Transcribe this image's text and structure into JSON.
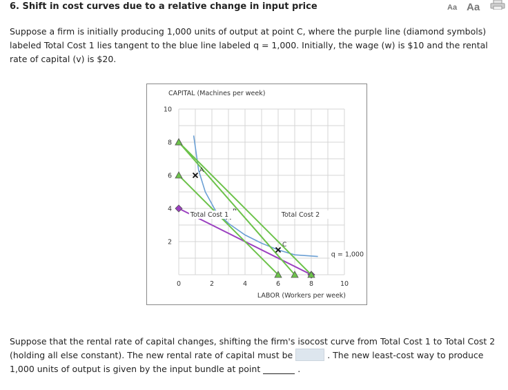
{
  "question": {
    "title": "6. Shift in cost curves due to a relative change in input price",
    "intro": "Suppose a firm is initially producing 1,000 units of output at point C, where the purple line (diamond symbols) labeled Total Cost 1 lies tangent to the blue line labeled q = 1,000. Initially, the wage (w) is $10 and the rental rate of capital (v) is $20.",
    "followup_part1": "Suppose that the rental rate of capital changes, shifting the firm's isocost curve from Total Cost 1 to Total Cost 2 (holding all else constant). The new rental rate of capital must be",
    "followup_part2": ". The new least-cost way to produce 1,000 units of output is given by the input bundle at point",
    "followup_end": "."
  },
  "toolbar": {
    "font_small_label": "Aa",
    "font_large_label": "Aa",
    "print_icon": "print-icon"
  },
  "chart_data": {
    "type": "line",
    "ylabel": "CAPITAL (Machines per week)",
    "xlabel": "LABOR (Workers per week)",
    "xlim": [
      0,
      10
    ],
    "ylim": [
      0,
      10
    ],
    "x_ticks": [
      "0",
      "2",
      "4",
      "6",
      "8",
      "10"
    ],
    "y_ticks": [
      "2",
      "4",
      "6",
      "8",
      "10"
    ],
    "grid": true,
    "series": [
      {
        "name": "q = 1,000",
        "color": "#6a9fd4",
        "kind": "isoquant",
        "points": [
          [
            0.9,
            8.4
          ],
          [
            1.2,
            6.3
          ],
          [
            1.6,
            5.0
          ],
          [
            2.2,
            3.9
          ],
          [
            3.0,
            3.1
          ],
          [
            4.0,
            2.4
          ],
          [
            5.0,
            1.9
          ],
          [
            6.0,
            1.5
          ],
          [
            7.0,
            1.2
          ],
          [
            8.4,
            1.1
          ]
        ]
      },
      {
        "name": "Total Cost 1",
        "color": "#9b3fc0",
        "kind": "isocost",
        "marker": "diamond",
        "points": [
          [
            0,
            4
          ],
          [
            8,
            0
          ]
        ]
      },
      {
        "name": "Total Cost 2",
        "color": "#6cc24a",
        "kind": "isocost",
        "marker": "triangle",
        "points": [
          [
            0,
            8
          ],
          [
            8,
            0
          ]
        ]
      },
      {
        "name": "",
        "color": "#6cc24a",
        "kind": "isocost",
        "marker": "triangle",
        "points": [
          [
            0,
            6
          ],
          [
            6,
            0
          ]
        ]
      },
      {
        "name": "",
        "color": "#6cc24a",
        "kind": "isocost",
        "marker": "triangle",
        "points": [
          [
            0,
            8
          ],
          [
            7,
            0
          ]
        ]
      }
    ],
    "annotations": [
      {
        "label": "A",
        "x": 1,
        "y": 6
      },
      {
        "label": "B",
        "x": 3,
        "y": 3.5
      },
      {
        "label": "C",
        "x": 6,
        "y": 1.5
      }
    ],
    "series_labels": [
      {
        "text": "Total Cost 1",
        "x": 0.7,
        "y": 3.5
      },
      {
        "text": "Total Cost 2",
        "x": 6.2,
        "y": 3.5
      },
      {
        "text": "q = 1,000",
        "x": 9.2,
        "y": 1.1
      }
    ]
  }
}
